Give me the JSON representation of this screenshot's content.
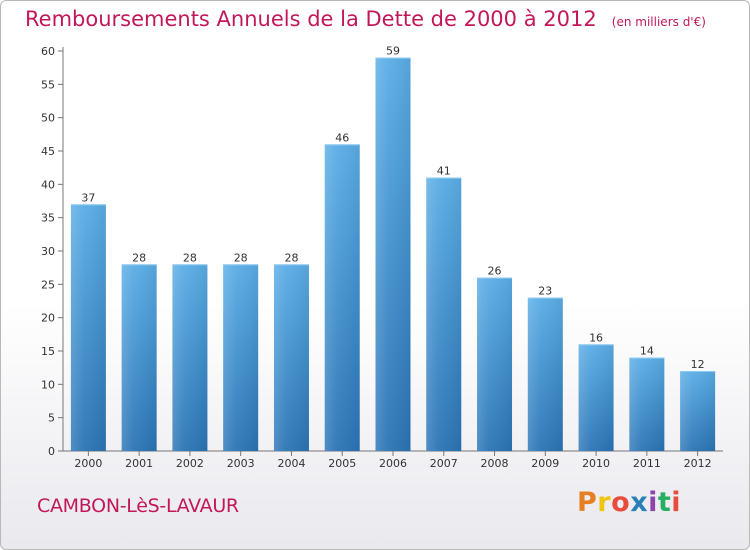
{
  "title": "Remboursements Annuels de la Dette de 2000 à 2012",
  "unit_note": "(en milliers d'€)",
  "commune": "CAMBON-LèS-LAVAUR",
  "logo": {
    "letters": [
      "P",
      "r",
      "o",
      "x",
      "i",
      "t",
      "i"
    ],
    "colors": [
      "#e67e22",
      "#f1c40f",
      "#e74c3c",
      "#2980b9",
      "#8e44ad",
      "#27ae60",
      "#e74c3c"
    ]
  },
  "colors": {
    "bar_top": "#5aade6",
    "bar_bottom": "#2a74b5",
    "title": "#c2185b"
  },
  "chart_data": {
    "type": "bar",
    "categories": [
      "2000",
      "2001",
      "2002",
      "2003",
      "2004",
      "2005",
      "2006",
      "2007",
      "2008",
      "2009",
      "2010",
      "2011",
      "2012"
    ],
    "values": [
      37,
      28,
      28,
      28,
      28,
      46,
      59,
      41,
      26,
      23,
      16,
      14,
      12
    ],
    "title": "Remboursements Annuels de la Dette de 2000 à 2012",
    "xlabel": "",
    "ylabel": "",
    "ylim": [
      0,
      60
    ],
    "yticks": [
      0,
      5,
      10,
      15,
      20,
      25,
      30,
      35,
      40,
      45,
      50,
      55,
      60
    ],
    "grid": false,
    "data_labels": true
  }
}
